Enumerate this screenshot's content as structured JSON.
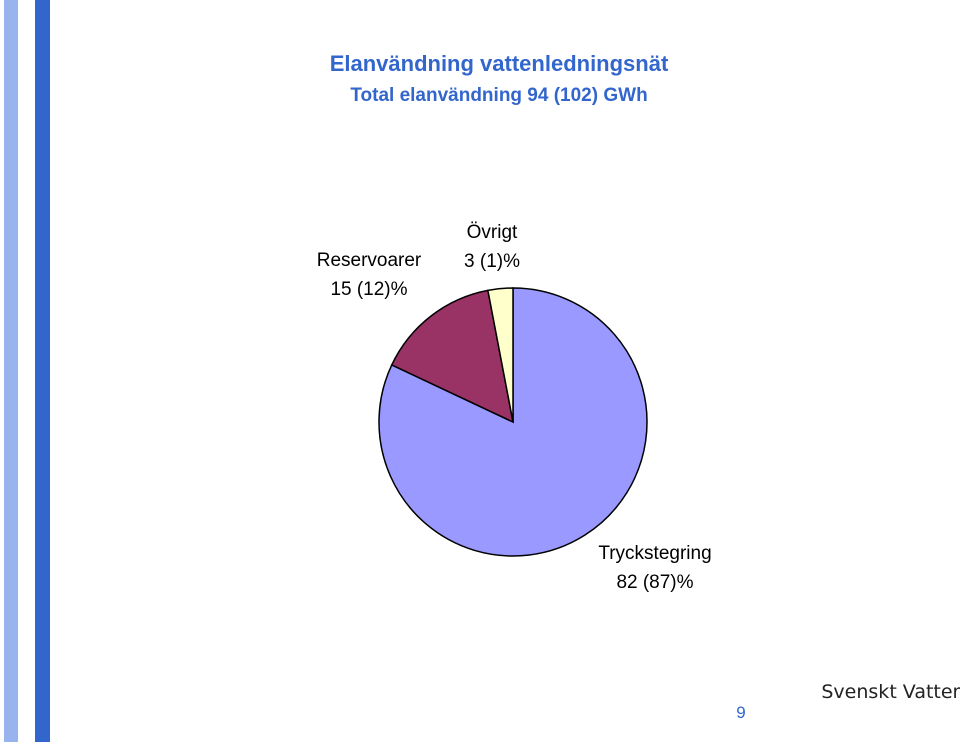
{
  "header": {
    "title": "Elanvändning vattenledningsnät",
    "subtitle": "Total elanvändning 94 (102) GWh"
  },
  "chart_data": {
    "type": "pie",
    "categories": [
      "Tryckstegring",
      "Reservoarer",
      "Övrigt"
    ],
    "values": [
      82,
      15,
      3
    ],
    "value_labels": [
      "82 (87)%",
      "15 (12)%",
      "3 (1)%"
    ],
    "colors": [
      "#9999ff",
      "#993366",
      "#ffffcc"
    ]
  },
  "footer": {
    "page_number": "9",
    "logo": "Svenskt Vatten"
  }
}
